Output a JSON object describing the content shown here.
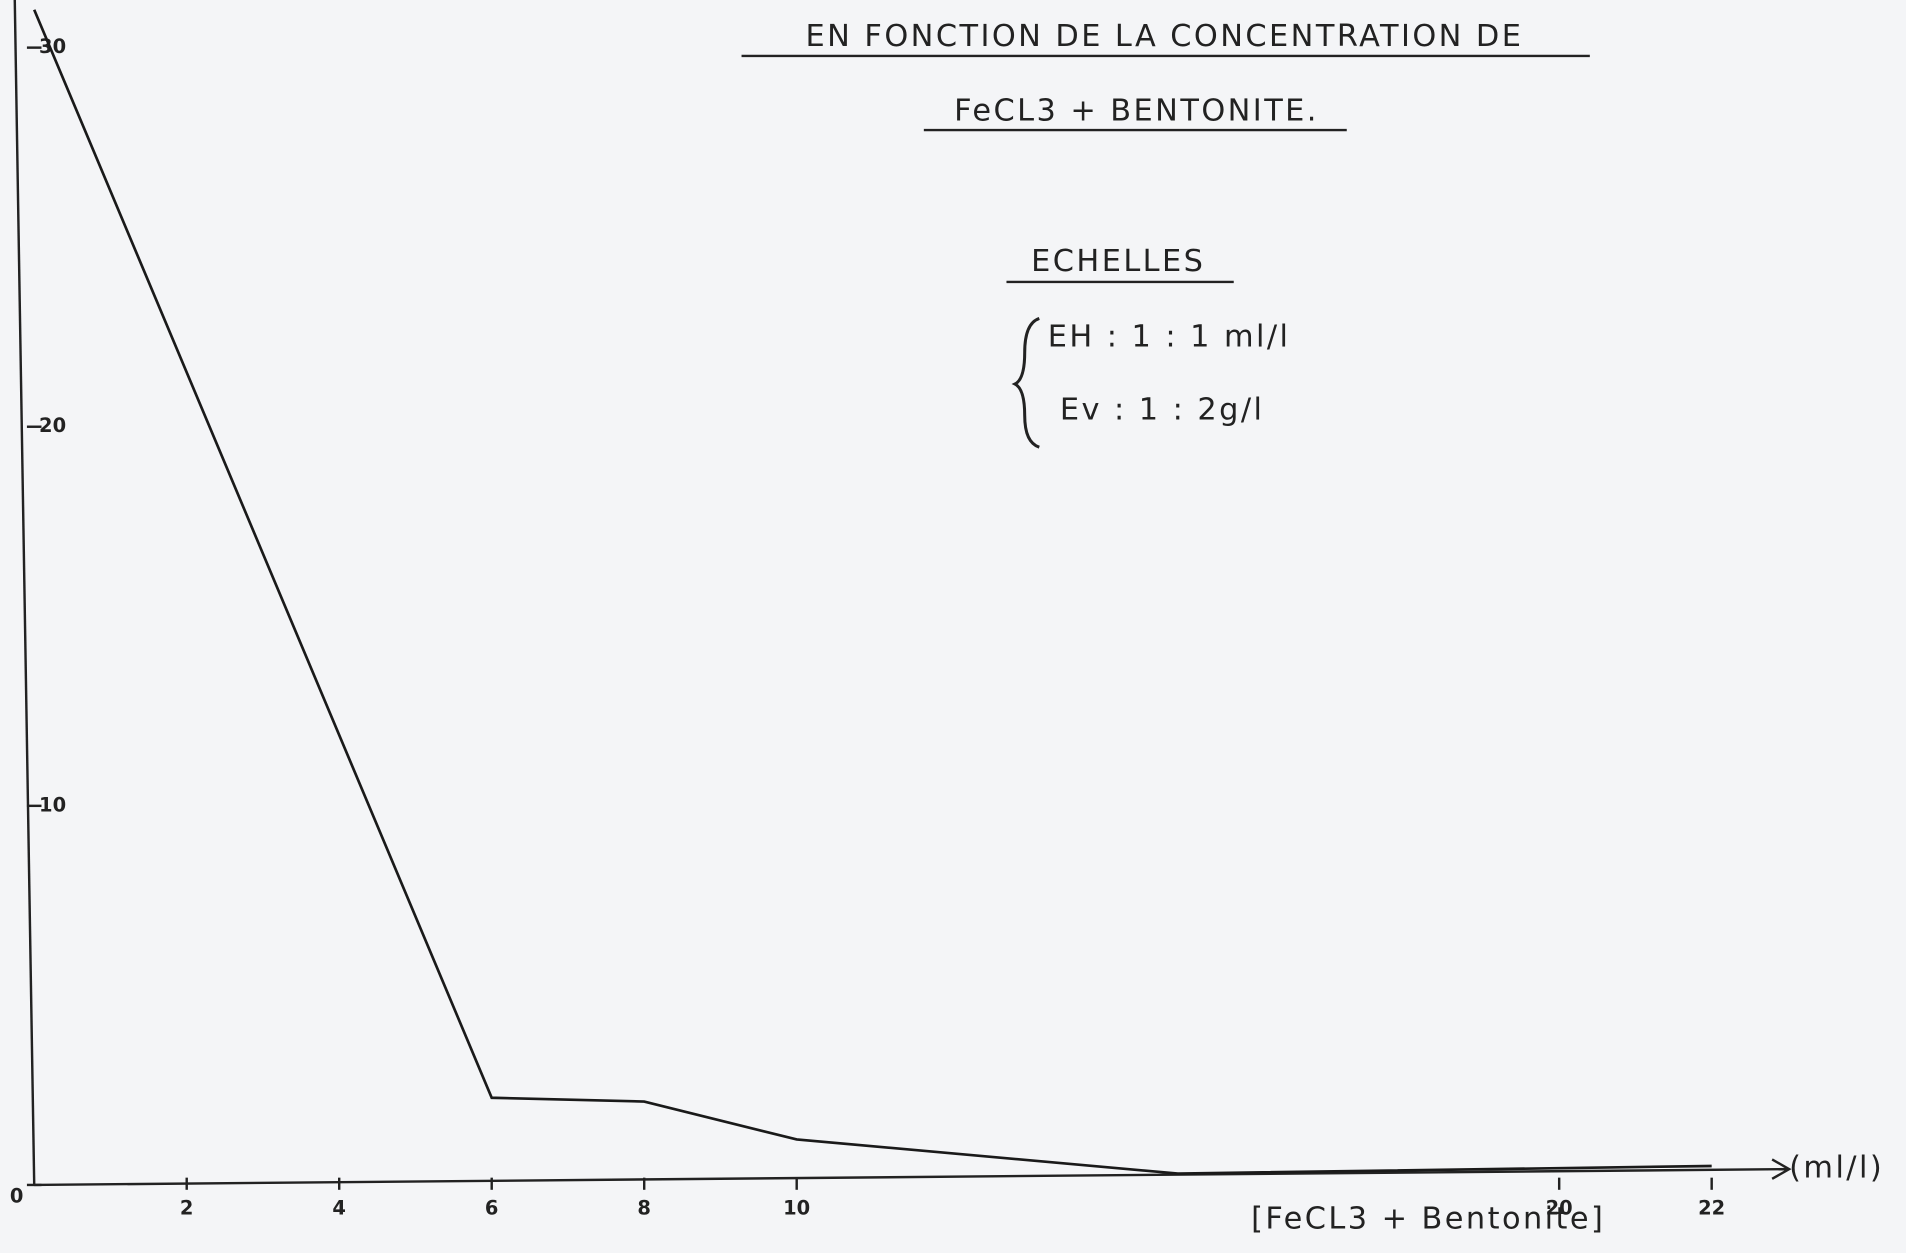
{
  "chart_data": {
    "type": "line",
    "title": [
      "EN FONCTION DE LA CONCENTRATION DE",
      "FeCL3 + BENTONITE."
    ],
    "scale_heading": "ECHELLES",
    "scales": [
      "EH : 1 : 1 ml/l",
      "Ev : 1 : 2g/l"
    ],
    "xlabel": "[FeCL3 + Bentonite]",
    "x_unit": "(ml/l)",
    "x": [
      0,
      6,
      8,
      10,
      15,
      22
    ],
    "values": [
      31,
      2.3,
      2.2,
      1.2,
      0.3,
      0.5
    ],
    "color": "#1a1a1a",
    "xlim": [
      0,
      23
    ],
    "ylim": [
      0,
      31
    ],
    "xticks": [
      2,
      4,
      6,
      8,
      10,
      20,
      22
    ],
    "yticks": [
      0,
      10,
      20,
      30
    ],
    "grid": false
  }
}
